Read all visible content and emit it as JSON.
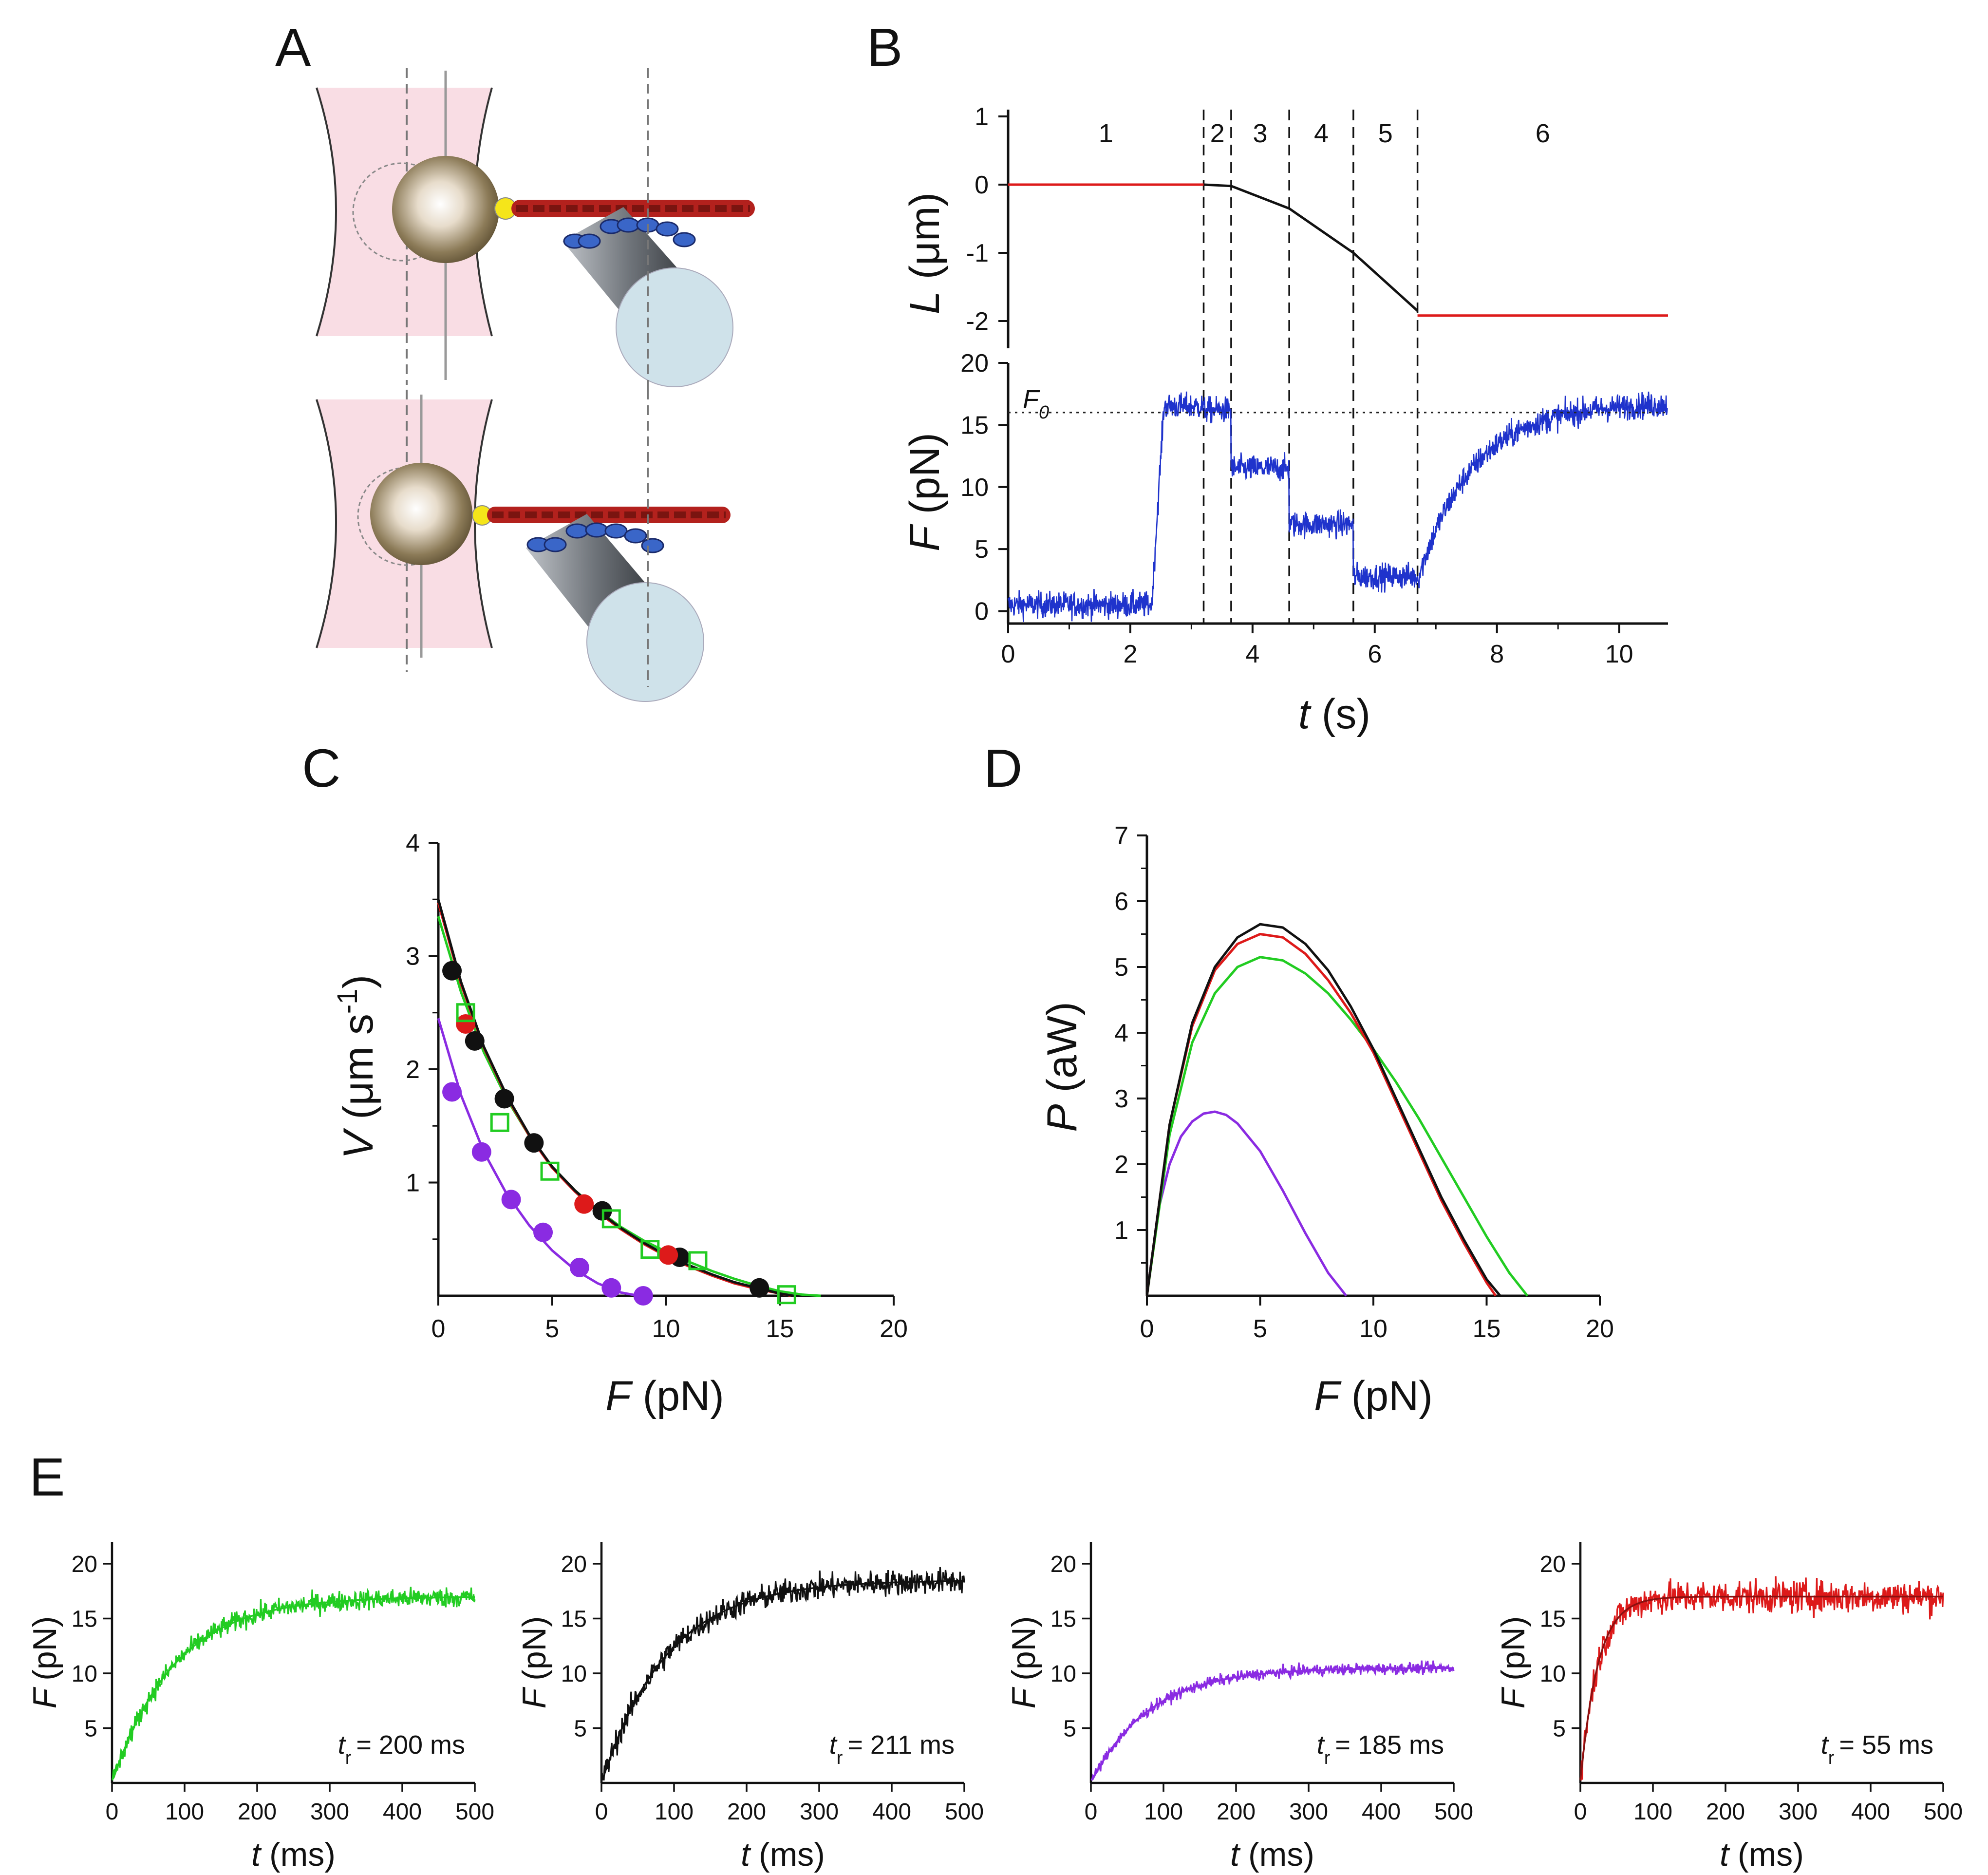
{
  "colors": {
    "green": "#22cc22",
    "black": "#111111",
    "red": "#dd1a1a",
    "purple": "#8a2be2",
    "blue": "#1f33cc",
    "pink": "#f9dde4"
  },
  "chart_data": [
    {
      "panel": "A",
      "type": "diagram",
      "panel_label": "A",
      "description_items": [
        "bead-in-optical-trap",
        "actin-filament",
        "myosin-coated-cylinder"
      ]
    },
    {
      "panel": "B",
      "type": "line",
      "panel_label": "B",
      "xlabel": {
        "var": "t",
        "unit": "(s)"
      },
      "x_ticks": [
        "0",
        "2",
        "4",
        "6",
        "8",
        "10"
      ],
      "xlim": [
        0,
        10.8
      ],
      "segment_boundaries": [
        3.2,
        3.65,
        4.6,
        5.65,
        6.7
      ],
      "segment_labels": [
        "1",
        "2",
        "3",
        "4",
        "5",
        "6"
      ],
      "top": {
        "ylabel": {
          "var": "L",
          "unit": "(μm)"
        },
        "y_ticks": [
          "1",
          "0",
          "-1",
          "-2"
        ],
        "ylim": [
          -2.4,
          1.1
        ],
        "series": [
          {
            "name": "L-red-start",
            "color": "red",
            "x": [
              0,
              3.2
            ],
            "y": [
              0,
              0
            ]
          },
          {
            "name": "L-black",
            "color": "black",
            "x": [
              3.2,
              3.65,
              4.6,
              5.65,
              6.7
            ],
            "y": [
              0,
              -0.02,
              -0.35,
              -1.0,
              -1.85
            ]
          },
          {
            "name": "L-red-end",
            "color": "red",
            "x": [
              6.7,
              10.8
            ],
            "y": [
              -1.92,
              -1.92
            ]
          }
        ]
      },
      "bottom": {
        "ylabel": {
          "var": "F",
          "unit": "(pN)"
        },
        "y_ticks": [
          "20",
          "15",
          "10",
          "5",
          "0"
        ],
        "ylim": [
          -1,
          20
        ],
        "F0_label": "F",
        "F0_sub": "0",
        "F0_value": 16,
        "series": [
          {
            "name": "F-trace",
            "color": "blue",
            "levels": [
              [
                0,
                2.35,
                0.5
              ],
              [
                2.35,
                2.55,
                10
              ],
              [
                2.55,
                3.2,
                16.5
              ],
              [
                3.2,
                3.65,
                16.2
              ],
              [
                3.65,
                4.6,
                11.5
              ],
              [
                4.6,
                5.65,
                7
              ],
              [
                5.65,
                6.7,
                2.8
              ],
              [
                6.7,
                10.8,
                16.8
              ]
            ]
          }
        ]
      }
    },
    {
      "panel": "C",
      "type": "scatter",
      "panel_label": "C",
      "xlabel": {
        "var": "F",
        "unit": "(pN)"
      },
      "ylabel": {
        "var": "V",
        "unit": "(μm s",
        "sup": "-1",
        "close": ")"
      },
      "x_ticks": [
        "0",
        "5",
        "10",
        "15",
        "20"
      ],
      "y_ticks": [
        "1",
        "2",
        "3",
        "4"
      ],
      "xlim": [
        0,
        20
      ],
      "ylim": [
        0,
        4
      ],
      "series": [
        {
          "name": "black-points",
          "color": "black",
          "marker": "filled-circle",
          "x": [
            0.6,
            1.6,
            2.9,
            4.2,
            7.2,
            10.6,
            14.1
          ],
          "y": [
            2.87,
            2.25,
            1.74,
            1.35,
            0.75,
            0.34,
            0.07
          ]
        },
        {
          "name": "red-points",
          "color": "red",
          "marker": "filled-circle",
          "x": [
            1.2,
            6.4,
            10.1
          ],
          "y": [
            2.4,
            0.81,
            0.36
          ]
        },
        {
          "name": "green-points",
          "color": "green",
          "marker": "open-square",
          "x": [
            1.2,
            2.7,
            4.9,
            7.6,
            9.3,
            11.4,
            15.3
          ],
          "y": [
            2.5,
            1.53,
            1.1,
            0.68,
            0.41,
            0.31,
            0.01
          ]
        },
        {
          "name": "purple-points",
          "color": "purple",
          "marker": "filled-circle",
          "x": [
            0.6,
            1.9,
            3.2,
            4.6,
            6.2,
            7.6,
            9.0
          ],
          "y": [
            1.8,
            1.27,
            0.85,
            0.56,
            0.25,
            0.07,
            0.0
          ]
        },
        {
          "name": "black-fit",
          "color": "black",
          "type": "line",
          "x": [
            0,
            1,
            2,
            3,
            4,
            5,
            6,
            7,
            8,
            9,
            10,
            11,
            12,
            13,
            14,
            15,
            15.6
          ],
          "y": [
            3.5,
            2.77,
            2.2,
            1.77,
            1.42,
            1.14,
            0.93,
            0.75,
            0.6,
            0.47,
            0.36,
            0.27,
            0.19,
            0.12,
            0.07,
            0.02,
            0.0
          ]
        },
        {
          "name": "red-fit",
          "color": "red",
          "type": "line",
          "x": [
            0,
            1,
            2,
            3,
            4,
            5,
            6,
            7,
            8,
            9,
            10,
            11,
            12,
            13,
            14,
            15,
            15.5
          ],
          "y": [
            3.47,
            2.75,
            2.19,
            1.76,
            1.41,
            1.13,
            0.92,
            0.74,
            0.59,
            0.46,
            0.35,
            0.26,
            0.18,
            0.11,
            0.06,
            0.02,
            0.0
          ]
        },
        {
          "name": "green-fit",
          "color": "green",
          "type": "line",
          "x": [
            0,
            1,
            2,
            3,
            4,
            5,
            6,
            7,
            8,
            9,
            10,
            11,
            12,
            13,
            14,
            15,
            16,
            16.8
          ],
          "y": [
            3.35,
            2.68,
            2.15,
            1.74,
            1.41,
            1.14,
            0.93,
            0.76,
            0.61,
            0.49,
            0.39,
            0.3,
            0.22,
            0.15,
            0.09,
            0.04,
            0.01,
            0.0
          ]
        },
        {
          "name": "purple-fit",
          "color": "purple",
          "type": "line",
          "x": [
            0,
            1,
            2,
            3,
            4,
            5,
            6,
            7,
            8,
            8.8
          ],
          "y": [
            2.45,
            1.77,
            1.27,
            0.9,
            0.62,
            0.4,
            0.23,
            0.11,
            0.03,
            0.0
          ]
        }
      ]
    },
    {
      "panel": "D",
      "type": "line",
      "panel_label": "D",
      "xlabel": {
        "var": "F",
        "unit": "(pN)"
      },
      "ylabel": {
        "var": "P",
        "unit": "(aW)"
      },
      "x_ticks": [
        "0",
        "5",
        "10",
        "15",
        "20"
      ],
      "y_ticks": [
        "1",
        "2",
        "3",
        "4",
        "5",
        "6",
        "7"
      ],
      "xlim": [
        0,
        20
      ],
      "ylim": [
        0,
        7
      ],
      "series": [
        {
          "name": "black",
          "color": "black",
          "x": [
            0,
            1,
            2,
            3,
            4,
            5,
            6,
            7,
            8,
            9,
            10,
            11,
            12,
            13,
            14,
            15,
            15.6
          ],
          "y": [
            0,
            2.6,
            4.15,
            5.0,
            5.45,
            5.65,
            5.6,
            5.35,
            4.95,
            4.4,
            3.75,
            3.0,
            2.25,
            1.5,
            0.85,
            0.25,
            0
          ]
        },
        {
          "name": "red",
          "color": "red",
          "x": [
            0,
            1,
            2,
            3,
            4,
            5,
            6,
            7,
            8,
            9,
            10,
            11,
            12,
            13,
            14,
            15,
            15.4
          ],
          "y": [
            0,
            2.6,
            4.1,
            4.95,
            5.35,
            5.5,
            5.45,
            5.2,
            4.8,
            4.3,
            3.7,
            2.95,
            2.2,
            1.45,
            0.8,
            0.2,
            0
          ]
        },
        {
          "name": "green",
          "color": "green",
          "x": [
            0,
            1,
            2,
            3,
            4,
            5,
            6,
            7,
            8,
            9,
            10,
            11,
            12,
            13,
            14,
            15,
            16,
            16.8
          ],
          "y": [
            0,
            2.45,
            3.85,
            4.6,
            5.0,
            5.15,
            5.1,
            4.9,
            4.6,
            4.2,
            3.75,
            3.25,
            2.7,
            2.1,
            1.5,
            0.9,
            0.35,
            0
          ]
        },
        {
          "name": "purple",
          "color": "purple",
          "x": [
            0,
            0.5,
            1,
            1.5,
            2,
            2.5,
            3,
            3.5,
            4,
            5,
            6,
            7,
            8,
            8.8
          ],
          "y": [
            0,
            1.3,
            2.0,
            2.42,
            2.65,
            2.77,
            2.8,
            2.75,
            2.62,
            2.2,
            1.6,
            0.95,
            0.35,
            0
          ]
        }
      ]
    },
    {
      "panel": "E",
      "type": "line",
      "panel_label": "E",
      "subplots": [
        {
          "color": "green",
          "tr_label": "t",
          "tr_sub": "r",
          "tr_value": "= 200 ms",
          "tau": 85,
          "Fmax": 17,
          "noise": 0.8,
          "xlabel": {
            "var": "t",
            "unit": "(ms)"
          },
          "ylabel": {
            "var": "F",
            "unit": "(pN)"
          },
          "x_ticks": [
            "0",
            "100",
            "200",
            "300",
            "400",
            "500"
          ],
          "y_ticks": [
            "5",
            "10",
            "15",
            "20"
          ],
          "xlim": [
            0,
            500
          ],
          "ylim": [
            0,
            22
          ]
        },
        {
          "color": "black",
          "tr_label": "t",
          "tr_sub": "r",
          "tr_value": "= 211 ms",
          "tau": 90,
          "Fmax": 18.5,
          "noise": 1.0,
          "xlabel": {
            "var": "t",
            "unit": "(ms)"
          },
          "ylabel": {
            "var": "F",
            "unit": "(pN)"
          },
          "x_ticks": [
            "0",
            "100",
            "200",
            "300",
            "400",
            "500"
          ],
          "y_ticks": [
            "5",
            "10",
            "15",
            "20"
          ],
          "xlim": [
            0,
            500
          ],
          "ylim": [
            0,
            22
          ]
        },
        {
          "color": "purple",
          "tr_label": "t",
          "tr_sub": "r",
          "tr_value": "= 185 ms",
          "tau": 80,
          "Fmax": 10.5,
          "noise": 0.45,
          "xlabel": {
            "var": "t",
            "unit": "(ms)"
          },
          "ylabel": {
            "var": "F",
            "unit": "(pN)"
          },
          "x_ticks": [
            "0",
            "100",
            "200",
            "300",
            "400",
            "500"
          ],
          "y_ticks": [
            "5",
            "10",
            "15",
            "20"
          ],
          "xlim": [
            0,
            500
          ],
          "ylim": [
            0,
            22
          ]
        },
        {
          "color": "red",
          "tr_label": "t",
          "tr_sub": "r",
          "tr_value": "= 55 ms",
          "tau": 24,
          "Fmax": 17,
          "noise": 1.3,
          "xlabel": {
            "var": "t",
            "unit": "(ms)"
          },
          "ylabel": {
            "var": "F",
            "unit": "(pN)"
          },
          "x_ticks": [
            "0",
            "100",
            "200",
            "300",
            "400",
            "500"
          ],
          "y_ticks": [
            "5",
            "10",
            "15",
            "20"
          ],
          "xlim": [
            0,
            500
          ],
          "ylim": [
            0,
            22
          ]
        }
      ]
    }
  ]
}
